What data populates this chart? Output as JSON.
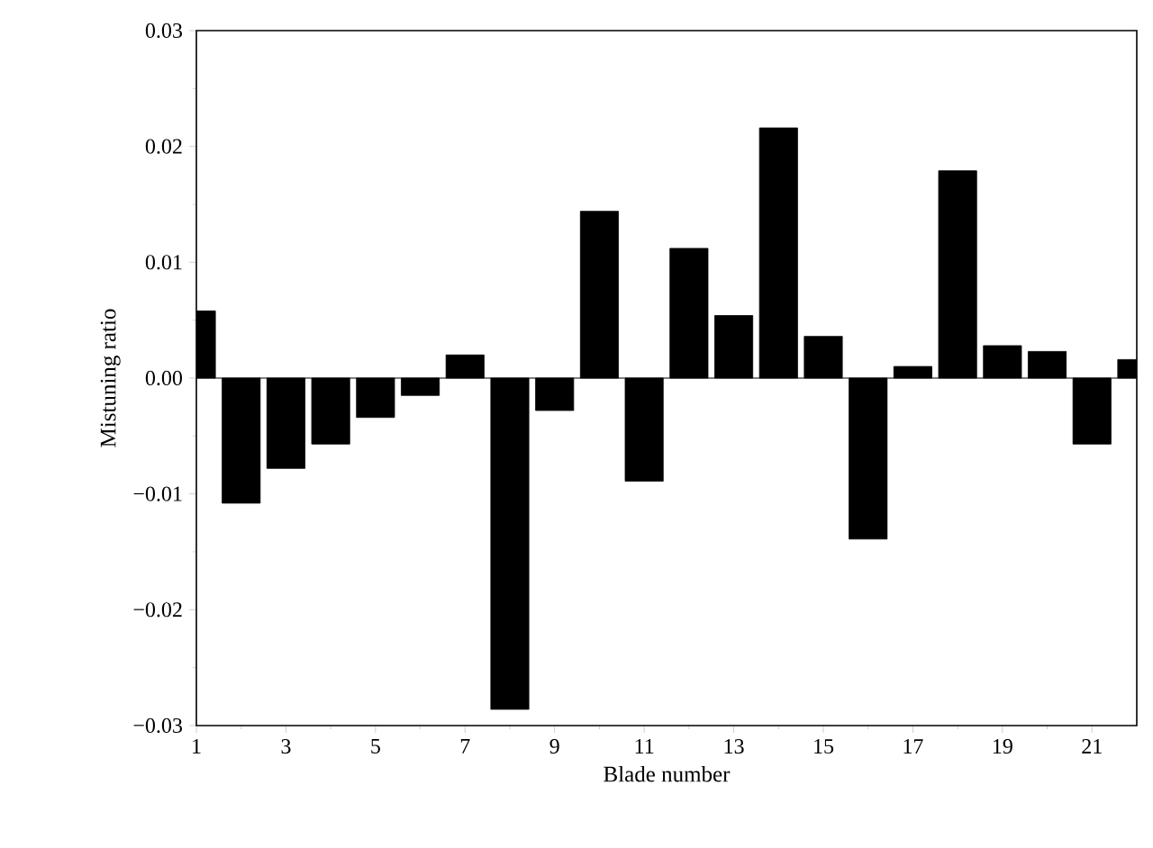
{
  "chart_data": {
    "type": "bar",
    "xlabel": "Blade number",
    "ylabel": "Mistuning ratio",
    "x": [
      1,
      2,
      3,
      4,
      5,
      6,
      7,
      8,
      9,
      10,
      11,
      12,
      13,
      14,
      15,
      16,
      17,
      18,
      19,
      20,
      21,
      22
    ],
    "values": [
      0.0058,
      -0.0108,
      -0.0078,
      -0.0057,
      -0.0034,
      -0.0015,
      0.002,
      -0.0286,
      -0.0028,
      0.0144,
      -0.0089,
      0.0112,
      0.0054,
      0.0216,
      0.0036,
      -0.0139,
      0.001,
      0.0179,
      0.0028,
      0.0023,
      -0.0057,
      0.0016
    ],
    "color": "#000000",
    "xlim": [
      1,
      22
    ],
    "xticks": [
      1,
      3,
      5,
      7,
      9,
      11,
      13,
      15,
      17,
      19,
      21
    ],
    "ylim": [
      -0.03,
      0.03
    ],
    "yticks": [
      {
        "value": -0.03,
        "label": "−0.03"
      },
      {
        "value": -0.02,
        "label": "−0.02"
      },
      {
        "value": -0.01,
        "label": "−0.01"
      },
      {
        "value": 0,
        "label": "0.00"
      },
      {
        "value": 0.01,
        "label": "0.01"
      },
      {
        "value": 0.02,
        "label": "0.02"
      },
      {
        "value": 0.03,
        "label": "0.03"
      }
    ],
    "ref_lines": [
      {
        "axis": "y",
        "value": 0
      }
    ]
  }
}
